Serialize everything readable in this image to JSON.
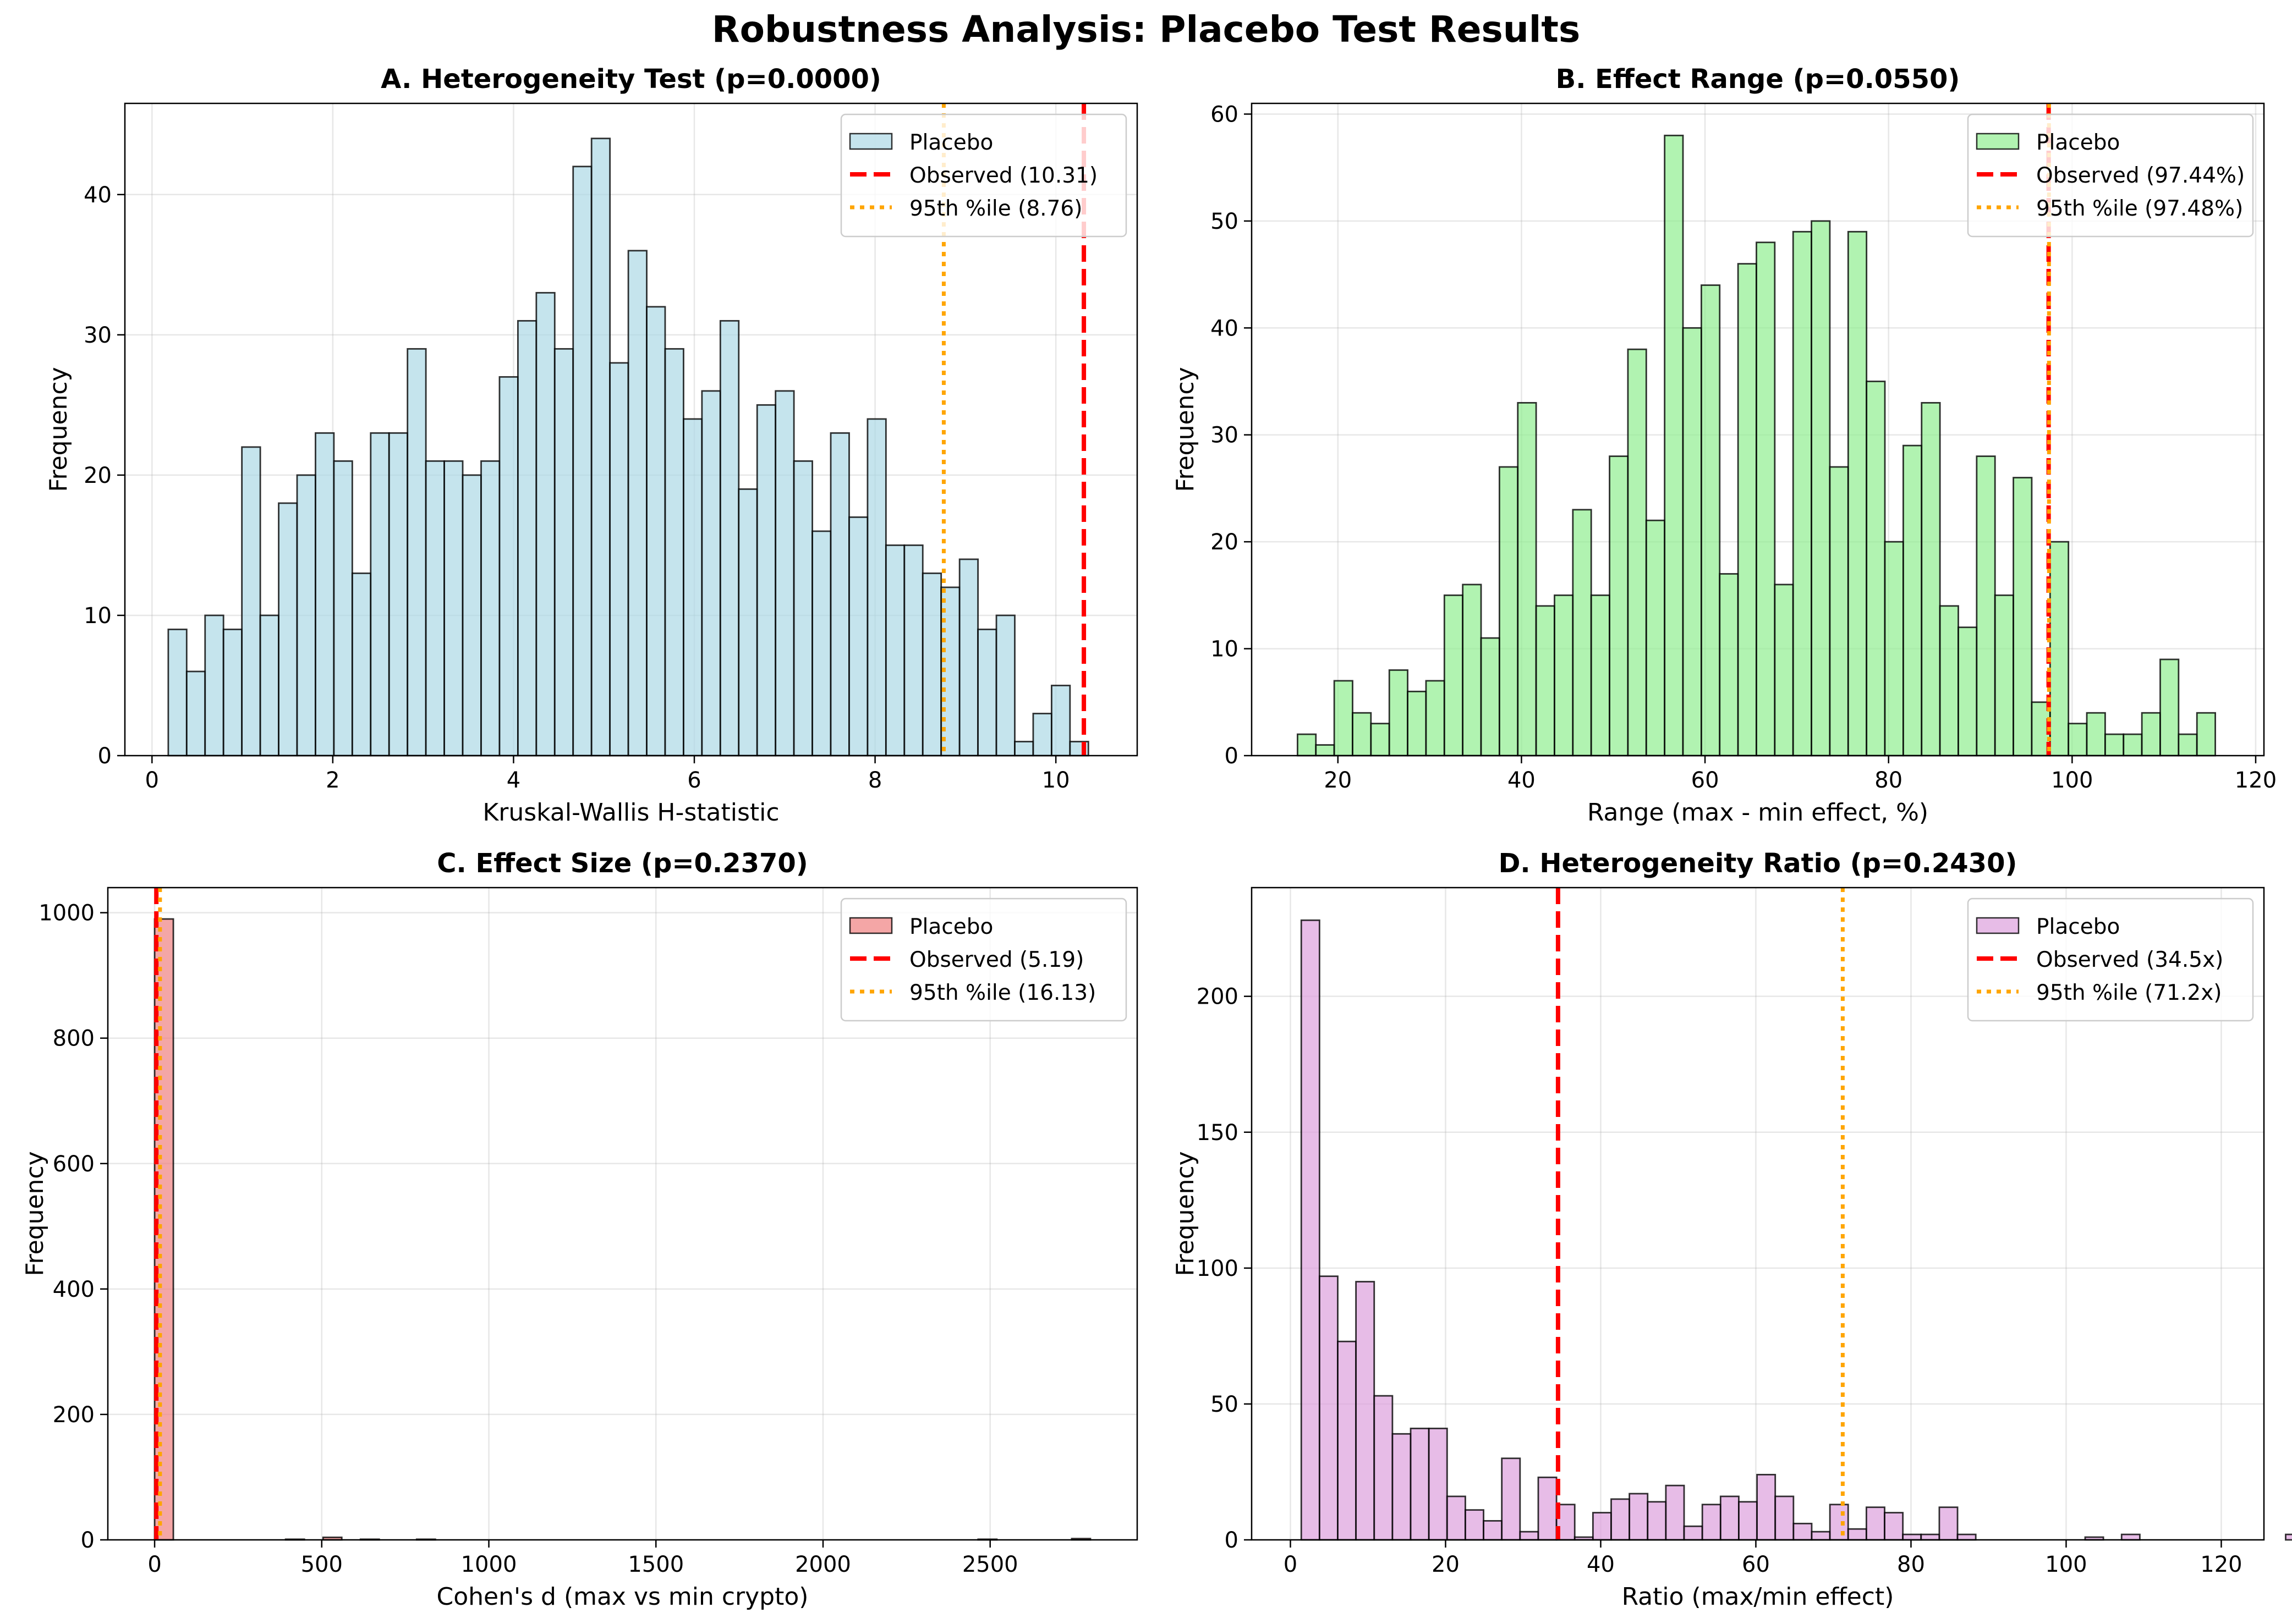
{
  "suptitle": "Robustness Analysis: Placebo Test Results",
  "chart_data": [
    {
      "type": "bar",
      "id": "A",
      "title": "A. Heterogeneity Test (p=0.0000)",
      "xlabel": "Kruskal-Wallis H-statistic",
      "ylabel": "Frequency",
      "xlim": [
        -0.3,
        10.9
      ],
      "ylim": [
        0,
        46.5
      ],
      "xticks": [
        0,
        2,
        4,
        6,
        8,
        10
      ],
      "yticks": [
        0,
        10,
        20,
        30,
        40
      ],
      "grid": true,
      "legend_position": "upper-right",
      "bin_start": 0.18,
      "bin_width": 0.2036,
      "series": [
        {
          "name": "Placebo",
          "color": "#add8e6",
          "values": [
            9,
            6,
            10,
            9,
            22,
            10,
            18,
            20,
            23,
            21,
            13,
            23,
            23,
            29,
            21,
            21,
            20,
            21,
            27,
            31,
            33,
            29,
            42,
            44,
            28,
            36,
            32,
            29,
            24,
            26,
            31,
            19,
            25,
            26,
            21,
            16,
            23,
            17,
            24,
            15,
            15,
            13,
            12,
            14,
            9,
            10,
            1,
            3,
            5,
            1
          ]
        }
      ],
      "lines": [
        {
          "label": "Observed (10.31)",
          "value": 10.31,
          "color": "#ff0000",
          "style": "dashed"
        },
        {
          "label": "95th %ile (8.76)",
          "value": 8.76,
          "color": "#ffa500",
          "style": "dotted"
        }
      ]
    },
    {
      "type": "bar",
      "id": "B",
      "title": "B. Effect Range (p=0.0550)",
      "xlabel": "Range (max - min effect, %)",
      "ylabel": "Frequency",
      "xlim": [
        10.6,
        120.9
      ],
      "ylim": [
        0,
        61
      ],
      "xticks": [
        20,
        40,
        60,
        80,
        100,
        120
      ],
      "yticks": [
        0,
        10,
        20,
        30,
        40,
        50,
        60
      ],
      "grid": true,
      "legend_position": "upper-right",
      "bin_start": 15.6,
      "bin_width": 2.0,
      "series": [
        {
          "name": "Placebo",
          "color": "#90ee90",
          "values": [
            2,
            1,
            7,
            4,
            3,
            8,
            6,
            7,
            15,
            16,
            11,
            27,
            33,
            14,
            15,
            23,
            15,
            28,
            38,
            22,
            58,
            40,
            44,
            17,
            46,
            48,
            16,
            49,
            50,
            27,
            49,
            35,
            20,
            29,
            33,
            14,
            12,
            28,
            15,
            26,
            5,
            20,
            3,
            4,
            2,
            2,
            4,
            9,
            2,
            4
          ]
        }
      ],
      "lines": [
        {
          "label": "Observed (97.44%)",
          "value": 97.44,
          "color": "#ff0000",
          "style": "dashed"
        },
        {
          "label": "95th %ile (97.48%)",
          "value": 97.48,
          "color": "#ffa500",
          "style": "dotted"
        }
      ]
    },
    {
      "type": "bar",
      "id": "C",
      "title": "C. Effect Size (p=0.2370)",
      "xlabel": "Cohen's d (max vs min crypto)",
      "ylabel": "Frequency",
      "xlim": [
        -140,
        2940
      ],
      "ylim": [
        0,
        1040
      ],
      "xticks": [
        0,
        500,
        1000,
        1500,
        2000,
        2500
      ],
      "yticks": [
        0,
        200,
        400,
        600,
        800,
        1000
      ],
      "grid": true,
      "legend_position": "upper-right",
      "bin_start": 0,
      "bin_width": 56,
      "series": [
        {
          "name": "Placebo",
          "color": "#f08080",
          "values": [
            990,
            0,
            0,
            0,
            0,
            0,
            0,
            1,
            0,
            4,
            0,
            1,
            0,
            0,
            1,
            0,
            0,
            0,
            0,
            0,
            0,
            0,
            0,
            0,
            0,
            0,
            0,
            0,
            0,
            0,
            0,
            0,
            0,
            0,
            0,
            0,
            0,
            0,
            0,
            0,
            0,
            0,
            0,
            0,
            1,
            0,
            0,
            0,
            0,
            2
          ]
        }
      ],
      "lines": [
        {
          "label": "Observed (5.19)",
          "value": 5.19,
          "color": "#ff0000",
          "style": "dashed"
        },
        {
          "label": "95th %ile (16.13)",
          "value": 16.13,
          "color": "#ffa500",
          "style": "dotted"
        }
      ]
    },
    {
      "type": "bar",
      "id": "D",
      "title": "D. Heterogeneity Ratio (p=0.2430)",
      "xlabel": "Ratio (max/min effect)",
      "ylabel": "Frequency",
      "xlim": [
        -5,
        125.5
      ],
      "ylim": [
        0,
        240
      ],
      "xticks": [
        0,
        20,
        40,
        60,
        80,
        100,
        120
      ],
      "yticks": [
        0,
        50,
        100,
        150,
        200
      ],
      "grid": true,
      "legend_position": "upper-right",
      "bin_start": 1.4,
      "bin_width": 2.35,
      "series": [
        {
          "name": "Placebo",
          "color": "#dda0dd",
          "values": [
            228,
            97,
            73,
            95,
            53,
            39,
            41,
            41,
            16,
            11,
            7,
            30,
            3,
            23,
            13,
            1,
            10,
            15,
            17,
            14,
            20,
            5,
            13,
            16,
            14,
            24,
            16,
            6,
            3,
            13,
            4,
            12,
            10,
            2,
            2,
            12,
            2,
            0,
            0,
            0,
            0,
            0,
            0,
            1,
            0,
            2,
            0,
            0,
            0,
            0,
            0,
            0,
            0,
            0,
            2
          ]
        }
      ],
      "lines": [
        {
          "label": "Observed (34.5x)",
          "value": 34.5,
          "color": "#ff0000",
          "style": "dashed"
        },
        {
          "label": "95th %ile (71.2x)",
          "value": 71.2,
          "color": "#ffa500",
          "style": "dotted"
        }
      ]
    }
  ]
}
